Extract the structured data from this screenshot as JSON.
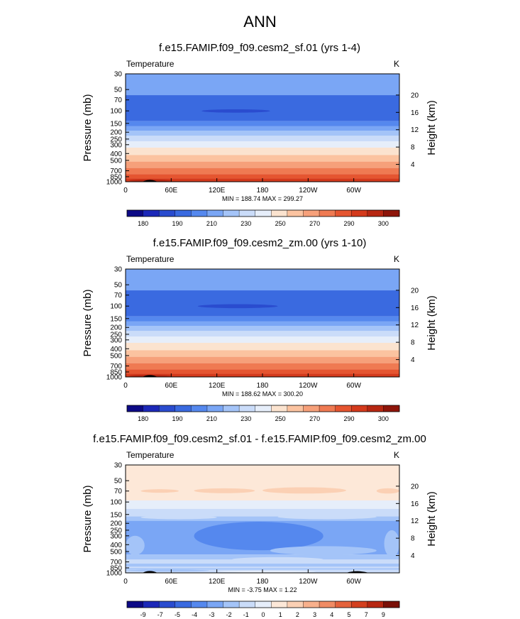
{
  "title": "ANN",
  "colors": {
    "abs": [
      "#0d0a86",
      "#1c28b8",
      "#2a4ccf",
      "#3a6ae0",
      "#5588ee",
      "#7aa6f5",
      "#a4c4f8",
      "#cadcf9",
      "#e6eefa",
      "#fbe3cf",
      "#fbc3a0",
      "#f6a07a",
      "#ef7a52",
      "#e55530",
      "#d43a1c",
      "#b72712",
      "#8e150a"
    ],
    "diff": [
      "#0d0a86",
      "#1c28b8",
      "#2a4ccf",
      "#3a6ae0",
      "#5588ee",
      "#7aa6f5",
      "#a4c4f8",
      "#cadcf9",
      "#e6eefa",
      "#fde8d8",
      "#fbd0b4",
      "#f8b08c",
      "#f08b64",
      "#e4623c",
      "#d4401f",
      "#b72712",
      "#7a1008"
    ],
    "land": "#000000"
  },
  "chart_data": [
    {
      "type": "heatmap",
      "id": "panel1",
      "title": "f.e15.FAMIP.f09_f09.cesm2_sf.01 (yrs 1-4)",
      "left_label": "Temperature",
      "unit": "K",
      "ylabel": "Pressure (mb)",
      "ylabel_right": "Height (km)",
      "pressure_ticks": [
        "30",
        "50",
        "70",
        "100",
        "150",
        "200",
        "250",
        "300",
        "400",
        "500",
        "700",
        "850",
        "1000"
      ],
      "height_ticks": [
        "20",
        "16",
        "12",
        "8",
        "4"
      ],
      "xtick_labels": [
        "0",
        "60E",
        "120E",
        "180",
        "120W",
        "60W"
      ],
      "xlim": [
        0,
        360
      ],
      "stats": "MIN = 188.74  MAX = 299.27",
      "colorbar_labels": [
        "180",
        "190",
        "210",
        "230",
        "250",
        "270",
        "290",
        "300"
      ],
      "bands": [
        {
          "p": [
            30,
            60
          ],
          "level": 5
        },
        {
          "p": [
            60,
            140
          ],
          "level": 3
        },
        {
          "p": [
            140,
            165
          ],
          "level": 4
        },
        {
          "p": [
            165,
            190
          ],
          "level": 5
        },
        {
          "p": [
            190,
            225
          ],
          "level": 6
        },
        {
          "p": [
            225,
            270
          ],
          "level": 7
        },
        {
          "p": [
            270,
            330
          ],
          "level": 8
        },
        {
          "p": [
            330,
            420
          ],
          "level": 9
        },
        {
          "p": [
            420,
            520
          ],
          "level": 10
        },
        {
          "p": [
            520,
            640
          ],
          "level": 11
        },
        {
          "p": [
            640,
            780
          ],
          "level": 12
        },
        {
          "p": [
            780,
            900
          ],
          "level": 13
        },
        {
          "p": [
            900,
            1000
          ],
          "level": 14
        }
      ],
      "features": [
        {
          "lon": [
            100,
            190
          ],
          "p": [
            95,
            106
          ],
          "level": 2,
          "shape": "ellipse"
        },
        {
          "lon": [
            5,
            60
          ],
          "p": [
            930,
            1000
          ],
          "level": 15,
          "shape": "ellipse"
        }
      ],
      "land": [
        {
          "lon": [
            22,
            42
          ],
          "p": [
            970,
            1000
          ]
        }
      ]
    },
    {
      "type": "heatmap",
      "id": "panel2",
      "title": "f.e15.FAMIP.f09_f09.cesm2_zm.00 (yrs 1-10)",
      "left_label": "Temperature",
      "unit": "K",
      "ylabel": "Pressure (mb)",
      "ylabel_right": "Height (km)",
      "pressure_ticks": [
        "30",
        "50",
        "70",
        "100",
        "150",
        "200",
        "250",
        "300",
        "400",
        "500",
        "700",
        "850",
        "1000"
      ],
      "height_ticks": [
        "20",
        "16",
        "12",
        "8",
        "4"
      ],
      "xtick_labels": [
        "0",
        "60E",
        "120E",
        "180",
        "120W",
        "60W"
      ],
      "xlim": [
        0,
        360
      ],
      "stats": "MIN = 188.62  MAX = 300.20",
      "colorbar_labels": [
        "180",
        "190",
        "210",
        "230",
        "250",
        "270",
        "290",
        "300"
      ],
      "bands": [
        {
          "p": [
            30,
            60
          ],
          "level": 5
        },
        {
          "p": [
            60,
            140
          ],
          "level": 3
        },
        {
          "p": [
            140,
            165
          ],
          "level": 4
        },
        {
          "p": [
            165,
            190
          ],
          "level": 5
        },
        {
          "p": [
            190,
            225
          ],
          "level": 6
        },
        {
          "p": [
            225,
            270
          ],
          "level": 7
        },
        {
          "p": [
            270,
            330
          ],
          "level": 8
        },
        {
          "p": [
            330,
            420
          ],
          "level": 9
        },
        {
          "p": [
            420,
            520
          ],
          "level": 10
        },
        {
          "p": [
            520,
            640
          ],
          "level": 11
        },
        {
          "p": [
            640,
            780
          ],
          "level": 12
        },
        {
          "p": [
            780,
            900
          ],
          "level": 13
        },
        {
          "p": [
            900,
            1000
          ],
          "level": 14
        }
      ],
      "features": [
        {
          "lon": [
            95,
            200
          ],
          "p": [
            94,
            107
          ],
          "level": 2,
          "shape": "ellipse"
        },
        {
          "lon": [
            5,
            60
          ],
          "p": [
            930,
            1000
          ],
          "level": 15,
          "shape": "ellipse"
        }
      ],
      "land": [
        {
          "lon": [
            22,
            42
          ],
          "p": [
            970,
            1000
          ]
        }
      ]
    },
    {
      "type": "heatmap",
      "id": "panel3",
      "title": "f.e15.FAMIP.f09_f09.cesm2_sf.01 - f.e15.FAMIP.f09_f09.cesm2_zm.00",
      "left_label": "Temperature",
      "unit": "K",
      "ylabel": "Pressure (mb)",
      "ylabel_right": "Height (km)",
      "pressure_ticks": [
        "30",
        "50",
        "70",
        "100",
        "150",
        "200",
        "250",
        "300",
        "400",
        "500",
        "700",
        "850",
        "1000"
      ],
      "height_ticks": [
        "20",
        "16",
        "12",
        "8",
        "4"
      ],
      "xtick_labels": [
        "0",
        "60E",
        "120E",
        "180",
        "120W",
        "60W"
      ],
      "xlim": [
        0,
        360
      ],
      "stats": "MIN = -3.75  MAX =  1.22",
      "colorbar_labels": [
        "-9",
        "-7",
        "-5",
        "-4",
        "-3",
        "-2",
        "-1",
        "0",
        "1",
        "2",
        "3",
        "4",
        "5",
        "7",
        "9"
      ],
      "bands": [
        {
          "p": [
            30,
            95
          ],
          "level": 9
        },
        {
          "p": [
            95,
            125
          ],
          "level": 8
        },
        {
          "p": [
            125,
            165
          ],
          "level": 7
        },
        {
          "p": [
            165,
            550
          ],
          "level": 5
        },
        {
          "p": [
            550,
            650
          ],
          "level": 6
        },
        {
          "p": [
            650,
            740
          ],
          "level": 7
        },
        {
          "p": [
            740,
            820
          ],
          "level": 6
        },
        {
          "p": [
            820,
            1000
          ],
          "level": 7
        }
      ],
      "features": [
        {
          "lon": [
            180,
            290
          ],
          "p": [
            62,
            76
          ],
          "level": 10,
          "shape": "ellipse"
        },
        {
          "lon": [
            90,
            170
          ],
          "p": [
            64,
            75
          ],
          "level": 10,
          "shape": "ellipse"
        },
        {
          "lon": [
            20,
            70
          ],
          "p": [
            66,
            74
          ],
          "level": 10,
          "shape": "ellipse"
        },
        {
          "lon": [
            330,
            360
          ],
          "p": [
            64,
            76
          ],
          "level": 10,
          "shape": "ellipse"
        },
        {
          "lon": [
            0,
            360
          ],
          "p": [
            160,
            185
          ],
          "level": 6,
          "shape": "rect"
        },
        {
          "lon": [
            20,
            120
          ],
          "p": [
            155,
            175
          ],
          "level": 7,
          "shape": "ellipse"
        },
        {
          "lon": [
            200,
            330
          ],
          "p": [
            150,
            175
          ],
          "level": 7,
          "shape": "ellipse"
        },
        {
          "lon": [
            90,
            260
          ],
          "p": [
            190,
            480
          ],
          "level": 4,
          "shape": "ellipse"
        },
        {
          "lon": [
            0,
            25
          ],
          "p": [
            300,
            560
          ],
          "level": 6,
          "shape": "ellipse"
        },
        {
          "lon": [
            190,
            330
          ],
          "p": [
            420,
            560
          ],
          "level": 6,
          "shape": "ellipse"
        },
        {
          "lon": [
            340,
            360
          ],
          "p": [
            250,
            600
          ],
          "level": 6,
          "shape": "ellipse"
        },
        {
          "lon": [
            140,
            260
          ],
          "p": [
            600,
            700
          ],
          "level": 7,
          "shape": "ellipse"
        },
        {
          "lon": [
            0,
            360
          ],
          "p": [
            860,
            900
          ],
          "level": 6,
          "shape": "rect"
        },
        {
          "lon": [
            0,
            110
          ],
          "p": [
            900,
            960
          ],
          "level": 6,
          "shape": "ellipse"
        },
        {
          "lon": [
            120,
            250
          ],
          "p": [
            930,
            990
          ],
          "level": 8,
          "shape": "ellipse"
        }
      ],
      "land": [
        {
          "lon": [
            22,
            42
          ],
          "p": [
            970,
            1000
          ]
        },
        {
          "lon": [
            290,
            320
          ],
          "p": [
            985,
            1000
          ]
        }
      ]
    }
  ]
}
